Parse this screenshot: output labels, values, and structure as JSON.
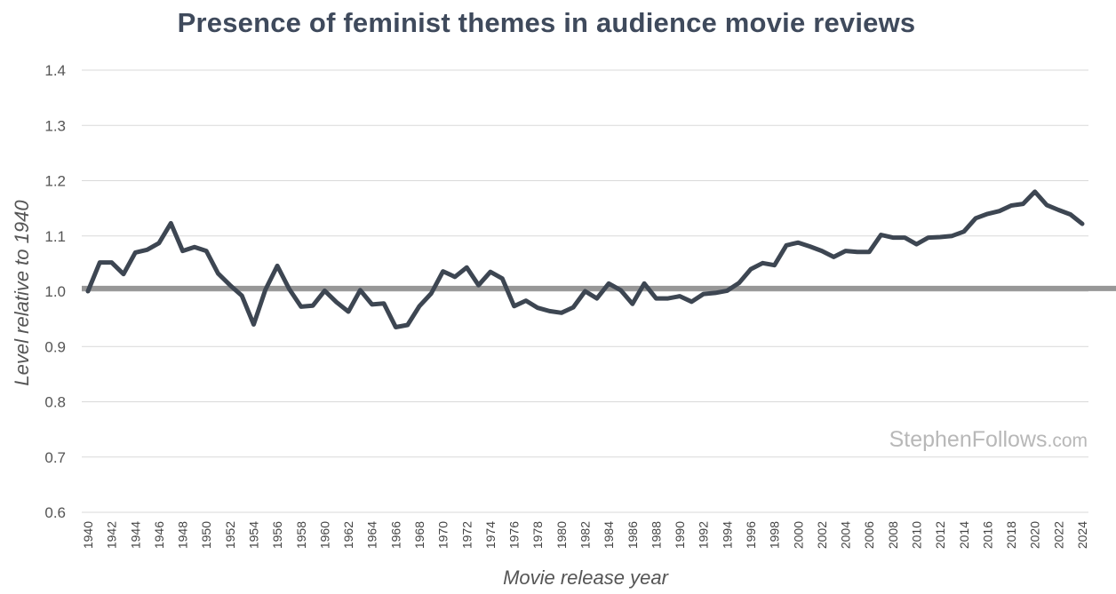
{
  "chart_data": {
    "type": "line",
    "title": "Presence of feminist themes in audience movie reviews",
    "xlabel": "Movie release year",
    "ylabel": "Level relative to 1940",
    "ylim": [
      0.6,
      1.4
    ],
    "yticks": [
      "0.6",
      "0.7",
      "0.8",
      "0.9",
      "1.0",
      "1.1",
      "1.2",
      "1.3",
      "1.4"
    ],
    "xlim": [
      1940,
      2024
    ],
    "xticks": [
      "1940",
      "1942",
      "1944",
      "1946",
      "1948",
      "1950",
      "1952",
      "1954",
      "1956",
      "1958",
      "1960",
      "1962",
      "1964",
      "1966",
      "1968",
      "1970",
      "1972",
      "1974",
      "1976",
      "1978",
      "1980",
      "1982",
      "1984",
      "1986",
      "1988",
      "1990",
      "1992",
      "1994",
      "1996",
      "1998",
      "2000",
      "2002",
      "2004",
      "2006",
      "2008",
      "2010",
      "2012",
      "2014",
      "2016",
      "2018",
      "2020",
      "2022",
      "2024"
    ],
    "reference_line": 1.005,
    "grid": true,
    "x": [
      1940,
      1941,
      1942,
      1943,
      1944,
      1945,
      1946,
      1947,
      1948,
      1949,
      1950,
      1951,
      1952,
      1953,
      1954,
      1955,
      1956,
      1957,
      1958,
      1959,
      1960,
      1961,
      1962,
      1963,
      1964,
      1965,
      1966,
      1967,
      1968,
      1969,
      1970,
      1971,
      1972,
      1973,
      1974,
      1975,
      1976,
      1977,
      1978,
      1979,
      1980,
      1981,
      1982,
      1983,
      1984,
      1985,
      1986,
      1987,
      1988,
      1989,
      1990,
      1991,
      1992,
      1993,
      1994,
      1995,
      1996,
      1997,
      1998,
      1999,
      2000,
      2001,
      2002,
      2003,
      2004,
      2005,
      2006,
      2007,
      2008,
      2009,
      2010,
      2011,
      2012,
      2013,
      2014,
      2015,
      2016,
      2017,
      2018,
      2019,
      2020,
      2021,
      2022,
      2023,
      2024
    ],
    "series": [
      {
        "name": "Feminist themes",
        "color": "#3d4652",
        "values": [
          1.0,
          1.052,
          1.052,
          1.031,
          1.07,
          1.075,
          1.087,
          1.123,
          1.073,
          1.08,
          1.073,
          1.032,
          1.011,
          0.992,
          0.94,
          1.003,
          1.046,
          1.004,
          0.972,
          0.974,
          1.001,
          0.98,
          0.963,
          1.002,
          0.976,
          0.978,
          0.935,
          0.939,
          0.973,
          0.996,
          1.036,
          1.026,
          1.043,
          1.011,
          1.035,
          1.023,
          0.973,
          0.983,
          0.97,
          0.964,
          0.961,
          0.971,
          1.0,
          0.987,
          1.014,
          1.002,
          0.977,
          1.014,
          0.987,
          0.987,
          0.991,
          0.981,
          0.995,
          0.997,
          1.001,
          1.015,
          1.04,
          1.051,
          1.047,
          1.083,
          1.088,
          1.081,
          1.073,
          1.062,
          1.073,
          1.071,
          1.071,
          1.102,
          1.097,
          1.097,
          1.085,
          1.097,
          1.098,
          1.1,
          1.108,
          1.132,
          1.14,
          1.145,
          1.155,
          1.158,
          1.18,
          1.156,
          1.147,
          1.139,
          1.122
        ]
      }
    ]
  },
  "watermark": {
    "brand": "StephenFollows",
    "suffix": ".com"
  }
}
